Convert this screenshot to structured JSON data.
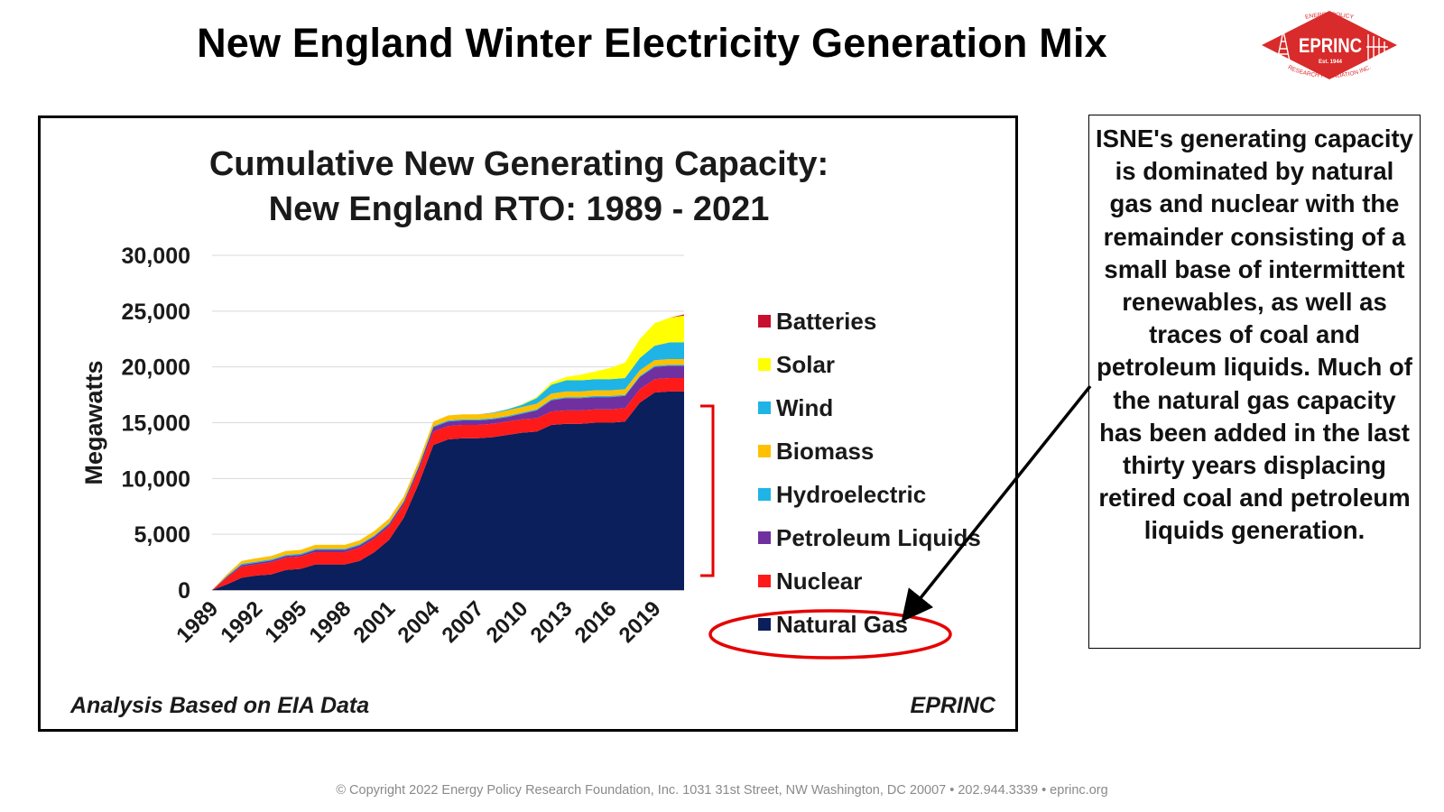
{
  "slide": {
    "title": "New England Winter Electricity Generation Mix",
    "copyright": "© Copyright 2022 Energy Policy Research Foundation, Inc. 1031 31st Street, NW Washington, DC 20007 • 202.944.3339 • eprinc.org"
  },
  "logo": {
    "name": "EPRINC",
    "est": "Est. 1944",
    "ring_top": "ENERGY POLICY",
    "ring_bottom": "RESEARCH FOUNDATION INC.",
    "color": "#d92b2b"
  },
  "chart_data": {
    "type": "area",
    "stacked": true,
    "title_lines": [
      "Cumulative New Generating Capacity:",
      "New England RTO: 1989 - 2021"
    ],
    "xlabel": "",
    "ylabel": "Megawatts",
    "ylim": [
      0,
      30000
    ],
    "yticks": [
      0,
      5000,
      10000,
      15000,
      20000,
      25000,
      30000
    ],
    "ytick_labels": [
      "0",
      "5,000",
      "10,000",
      "15,000",
      "20,000",
      "25,000",
      "30,000"
    ],
    "xticks": [
      "1989",
      "1992",
      "1995",
      "1998",
      "2001",
      "2004",
      "2007",
      "2010",
      "2013",
      "2016",
      "2019"
    ],
    "grid": true,
    "legend_position": "right",
    "x": [
      1989,
      1990,
      1991,
      1992,
      1993,
      1994,
      1995,
      1996,
      1997,
      1998,
      1999,
      2000,
      2001,
      2002,
      2003,
      2004,
      2005,
      2006,
      2007,
      2008,
      2009,
      2010,
      2011,
      2012,
      2013,
      2014,
      2015,
      2016,
      2017,
      2018,
      2019,
      2020,
      2021
    ],
    "series": [
      {
        "name": "Natural Gas",
        "color": "#0a1f5c",
        "values": [
          0,
          500,
          1100,
          1300,
          1400,
          1800,
          1900,
          2300,
          2300,
          2300,
          2600,
          3400,
          4500,
          6500,
          9500,
          13000,
          13500,
          13600,
          13600,
          13700,
          13900,
          14100,
          14200,
          14800,
          14900,
          14900,
          15000,
          15000,
          15100,
          16800,
          17700,
          17800,
          17800
        ]
      },
      {
        "name": "Nuclear",
        "color": "#ff1a1a",
        "values": [
          0,
          600,
          1000,
          1000,
          1100,
          1100,
          1100,
          1100,
          1100,
          1100,
          1200,
          1200,
          1200,
          1200,
          1200,
          1200,
          1200,
          1200,
          1200,
          1200,
          1200,
          1200,
          1200,
          1200,
          1200,
          1200,
          1200,
          1200,
          1200,
          1200,
          1200,
          1200,
          1200
        ]
      },
      {
        "name": "Petroleum Liquids",
        "color": "#7030a0",
        "values": [
          0,
          100,
          150,
          150,
          150,
          150,
          150,
          200,
          200,
          200,
          200,
          200,
          200,
          200,
          300,
          400,
          400,
          400,
          400,
          400,
          400,
          500,
          700,
          1000,
          1100,
          1100,
          1100,
          1100,
          1100,
          1100,
          1100,
          1100,
          1100
        ]
      },
      {
        "name": "Hydroelectric",
        "color": "#1fb4e6",
        "values": [
          0,
          50,
          100,
          100,
          100,
          100,
          100,
          100,
          100,
          100,
          100,
          100,
          100,
          100,
          100,
          100,
          100,
          100,
          100,
          100,
          100,
          100,
          100,
          100,
          100,
          100,
          100,
          100,
          100,
          100,
          100,
          100,
          100
        ]
      },
      {
        "name": "Biomass",
        "color": "#ffc000",
        "values": [
          0,
          150,
          250,
          300,
          300,
          350,
          350,
          350,
          350,
          350,
          350,
          400,
          400,
          400,
          400,
          400,
          450,
          450,
          450,
          450,
          500,
          500,
          500,
          500,
          500,
          500,
          500,
          500,
          500,
          500,
          500,
          500,
          500
        ]
      },
      {
        "name": "Wind",
        "color": "#1fb4e6",
        "values": [
          0,
          0,
          0,
          0,
          0,
          0,
          0,
          0,
          0,
          0,
          0,
          0,
          0,
          0,
          0,
          0,
          0,
          0,
          0,
          50,
          100,
          200,
          500,
          800,
          1000,
          1000,
          1000,
          1000,
          1000,
          1100,
          1300,
          1500,
          1500
        ]
      },
      {
        "name": "Solar",
        "color": "#ffff00",
        "values": [
          0,
          0,
          0,
          0,
          0,
          0,
          0,
          0,
          0,
          0,
          0,
          0,
          0,
          0,
          0,
          0,
          0,
          0,
          0,
          0,
          0,
          50,
          100,
          200,
          300,
          500,
          700,
          1000,
          1400,
          1700,
          2000,
          2200,
          2400
        ]
      },
      {
        "name": "Batteries",
        "color": "#c8102e",
        "values": [
          0,
          0,
          0,
          0,
          0,
          0,
          0,
          0,
          0,
          0,
          0,
          0,
          0,
          0,
          0,
          0,
          0,
          0,
          0,
          0,
          0,
          0,
          0,
          0,
          0,
          0,
          0,
          0,
          0,
          0,
          0,
          0,
          100
        ]
      }
    ]
  },
  "chart_notes": {
    "left": "Analysis Based on EIA Data",
    "right": "EPRINC"
  },
  "callout": {
    "text": "ISNE's generating capacity is dominated by natural gas and nuclear with the remainder consisting of a small base of intermittent renewables, as well as traces of coal and petroleum liquids. Much of the natural gas capacity has been added in the last thirty years displacing retired coal and petroleum liquids generation."
  },
  "annotations": {
    "bracket_color": "#e60000",
    "ellipse_color": "#e60000",
    "arrow_color": "#000000"
  }
}
